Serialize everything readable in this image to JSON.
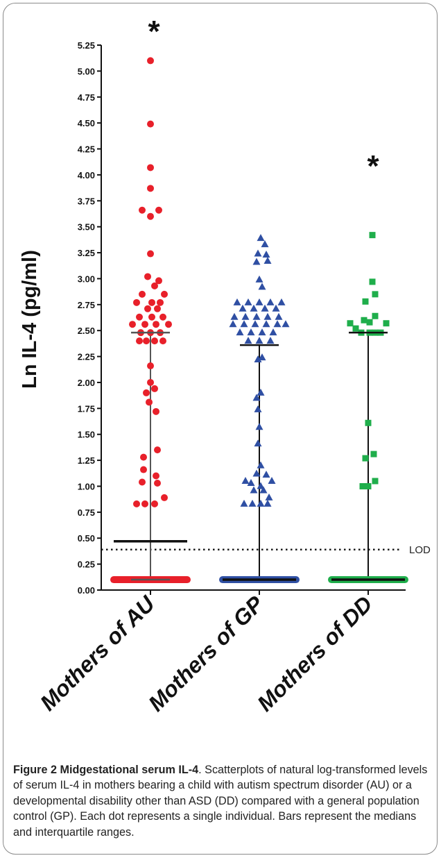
{
  "chart_data": {
    "type": "scatter",
    "ylabel": "Ln IL-4 (pg/ml)",
    "ylim": [
      0,
      5.25
    ],
    "yticks": [
      "0.00",
      "0.25",
      "0.50",
      "0.75",
      "1.00",
      "1.25",
      "1.50",
      "1.75",
      "2.00",
      "2.25",
      "2.50",
      "2.75",
      "3.00",
      "3.25",
      "3.50",
      "3.75",
      "4.00",
      "4.25",
      "4.50",
      "4.75",
      "5.00",
      "5.25"
    ],
    "categories": [
      "Mothers of AU",
      "Mothers of GP",
      "Mothers of DD"
    ],
    "significance_marks": [
      {
        "group": "Mothers of AU",
        "text": "*"
      },
      {
        "group": "Mothers of DD",
        "text": "*"
      }
    ],
    "reference_line": {
      "label": "LOD",
      "y": 0.39,
      "style": "dotted"
    },
    "series": [
      {
        "group": "Mothers of AU",
        "marker": "circle",
        "color": "#e8202a",
        "median": 0.47,
        "q1": 0.1,
        "q3": 2.48,
        "points": [
          [
            0,
            5.1
          ],
          [
            0,
            4.49
          ],
          [
            0,
            4.07
          ],
          [
            0,
            3.87
          ],
          [
            -0.3,
            3.66
          ],
          [
            0.3,
            3.66
          ],
          [
            0,
            3.6
          ],
          [
            0,
            3.24
          ],
          [
            -0.1,
            3.02
          ],
          [
            0.3,
            2.98
          ],
          [
            0.15,
            2.93
          ],
          [
            -0.3,
            2.85
          ],
          [
            0.5,
            2.85
          ],
          [
            -0.5,
            2.77
          ],
          [
            0.05,
            2.77
          ],
          [
            0.35,
            2.77
          ],
          [
            0.25,
            2.71
          ],
          [
            -0.1,
            2.71
          ],
          [
            0.05,
            2.63
          ],
          [
            -0.4,
            2.63
          ],
          [
            0.45,
            2.63
          ],
          [
            -0.65,
            2.56
          ],
          [
            -0.2,
            2.56
          ],
          [
            0.2,
            2.56
          ],
          [
            0.65,
            2.56
          ],
          [
            0,
            2.48
          ],
          [
            -0.35,
            2.48
          ],
          [
            0.35,
            2.48
          ],
          [
            -0.15,
            2.4
          ],
          [
            0.15,
            2.4
          ],
          [
            -0.4,
            2.4
          ],
          [
            0.45,
            2.4
          ],
          [
            0,
            2.16
          ],
          [
            0,
            2.0
          ],
          [
            0.15,
            1.94
          ],
          [
            -0.15,
            1.9
          ],
          [
            -0.05,
            1.81
          ],
          [
            0.2,
            1.72
          ],
          [
            0.25,
            1.35
          ],
          [
            -0.25,
            1.28
          ],
          [
            -0.25,
            1.16
          ],
          [
            0.2,
            1.1
          ],
          [
            -0.3,
            1.04
          ],
          [
            0.25,
            1.03
          ],
          [
            -0.5,
            0.83
          ],
          [
            -0.2,
            0.83
          ],
          [
            0.15,
            0.83
          ],
          [
            0.5,
            0.89
          ]
        ],
        "detection_floor": 0.1
      },
      {
        "group": "Mothers of GP",
        "marker": "triangle",
        "color": "#2f4fa3",
        "median": 0.1,
        "q1": 0.1,
        "q3": 2.36,
        "points": [
          [
            0.05,
            3.39
          ],
          [
            0.2,
            3.33
          ],
          [
            -0.05,
            3.24
          ],
          [
            0.25,
            3.23
          ],
          [
            -0.1,
            3.16
          ],
          [
            0.3,
            3.17
          ],
          [
            0,
            2.99
          ],
          [
            0.1,
            2.92
          ],
          [
            -0.8,
            2.77
          ],
          [
            -0.4,
            2.77
          ],
          [
            0,
            2.77
          ],
          [
            0.4,
            2.77
          ],
          [
            0.8,
            2.77
          ],
          [
            -0.6,
            2.71
          ],
          [
            -0.2,
            2.71
          ],
          [
            0.2,
            2.71
          ],
          [
            0.6,
            2.71
          ],
          [
            -0.9,
            2.63
          ],
          [
            -0.5,
            2.63
          ],
          [
            -0.1,
            2.63
          ],
          [
            0.3,
            2.63
          ],
          [
            0.7,
            2.63
          ],
          [
            -0.95,
            2.56
          ],
          [
            -0.55,
            2.56
          ],
          [
            -0.15,
            2.56
          ],
          [
            0.25,
            2.56
          ],
          [
            0.65,
            2.56
          ],
          [
            0.95,
            2.56
          ],
          [
            -0.7,
            2.48
          ],
          [
            -0.3,
            2.48
          ],
          [
            0.1,
            2.48
          ],
          [
            0.5,
            2.48
          ],
          [
            -0.4,
            2.4
          ],
          [
            0,
            2.4
          ],
          [
            0.4,
            2.4
          ],
          [
            0.1,
            2.24
          ],
          [
            -0.05,
            2.22
          ],
          [
            0.05,
            1.9
          ],
          [
            -0.1,
            1.85
          ],
          [
            -0.05,
            1.74
          ],
          [
            0,
            1.57
          ],
          [
            -0.05,
            1.41
          ],
          [
            0.05,
            1.2
          ],
          [
            -0.1,
            1.12
          ],
          [
            0.25,
            1.11
          ],
          [
            -0.5,
            1.05
          ],
          [
            -0.3,
            1.03
          ],
          [
            0.45,
            1.05
          ],
          [
            0.05,
            1.0
          ],
          [
            -0.2,
            0.96
          ],
          [
            0.15,
            0.96
          ],
          [
            0.35,
            0.89
          ],
          [
            -0.55,
            0.83
          ],
          [
            -0.25,
            0.83
          ],
          [
            0.05,
            0.83
          ],
          [
            0.3,
            0.83
          ]
        ],
        "detection_floor": 0.1
      },
      {
        "group": "Mothers of DD",
        "marker": "square",
        "color": "#1fae4b",
        "median": 0.1,
        "q1": 0.1,
        "q3": 2.48,
        "points": [
          [
            0.15,
            3.42
          ],
          [
            0.15,
            2.97
          ],
          [
            -0.1,
            2.78
          ],
          [
            0.25,
            2.85
          ],
          [
            0.25,
            2.64
          ],
          [
            -0.15,
            2.6
          ],
          [
            0.05,
            2.58
          ],
          [
            -0.65,
            2.57
          ],
          [
            0.65,
            2.57
          ],
          [
            -0.45,
            2.52
          ],
          [
            -0.25,
            2.48
          ],
          [
            0.05,
            2.48
          ],
          [
            0.25,
            2.48
          ],
          [
            0.45,
            2.48
          ],
          [
            0,
            1.61
          ],
          [
            0.2,
            1.31
          ],
          [
            -0.1,
            1.27
          ],
          [
            0.25,
            1.05
          ],
          [
            -0.2,
            1.0
          ],
          [
            0,
            1.0
          ]
        ],
        "detection_floor": 0.1
      }
    ]
  },
  "caption": {
    "lead": "Figure 2 Midgestational serum IL-4",
    "text": ". Scatterplots of natural log-transformed levels of serum IL-4 in mothers bearing a child with autism spectrum disorder (AU) or a developmental disability other than ASD (DD) compared with a general population control (GP). Each dot represents a single individual. Bars represent the medians and interquartile ranges."
  }
}
